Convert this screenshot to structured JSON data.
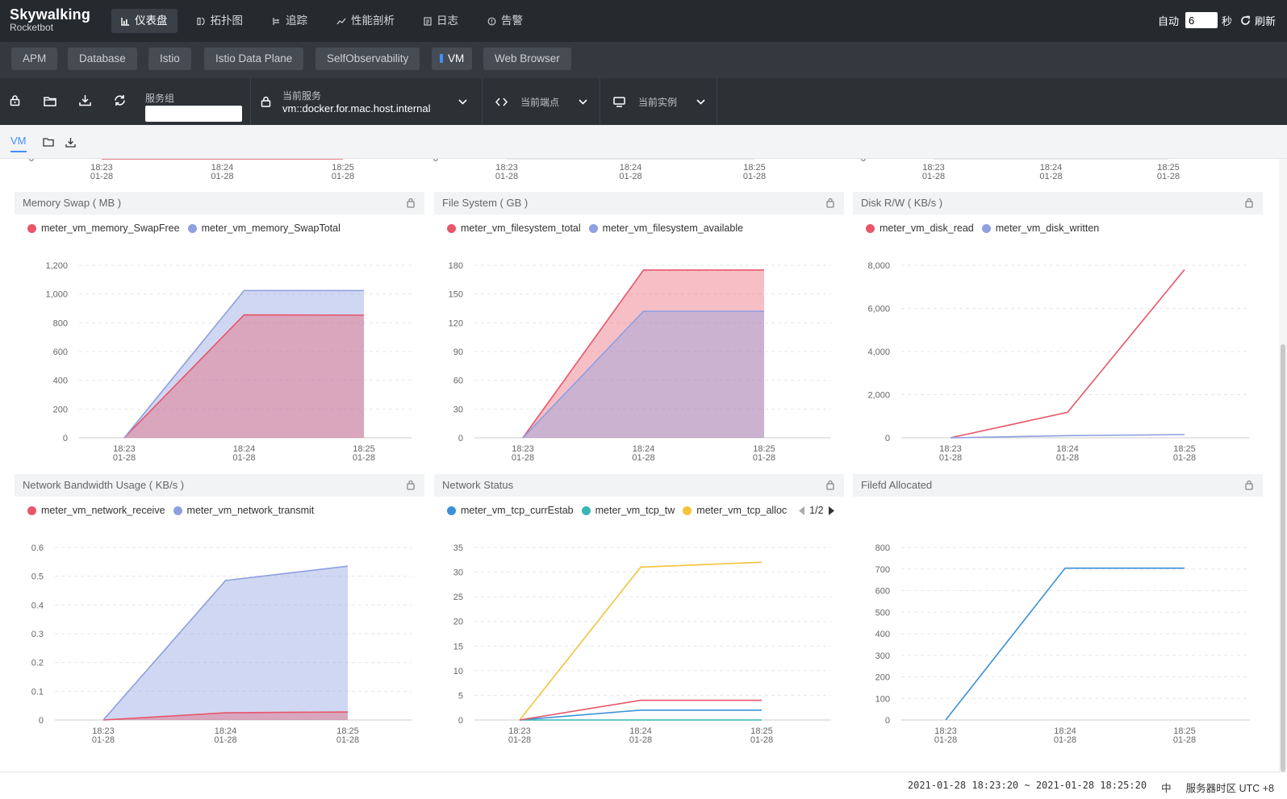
{
  "app": {
    "logo": "Skywalking",
    "logo_sub": "Rocketbot"
  },
  "nav": {
    "items": [
      {
        "label": "仪表盘",
        "icon": "dashboard-icon",
        "active": true
      },
      {
        "label": "拓扑图",
        "icon": "topology-icon"
      },
      {
        "label": "追踪",
        "icon": "trace-icon"
      },
      {
        "label": "性能剖析",
        "icon": "profile-icon"
      },
      {
        "label": "日志",
        "icon": "log-icon"
      },
      {
        "label": "告警",
        "icon": "alarm-icon"
      }
    ]
  },
  "refresh": {
    "auto_label": "自动",
    "interval": "6",
    "seconds_label": "秒",
    "refresh_label": "刷新"
  },
  "layer_tabs": [
    "APM",
    "Database",
    "Istio",
    "Istio Data Plane",
    "SelfObservability",
    "VM",
    "Web Browser"
  ],
  "active_layer": "VM",
  "toolbar": {
    "group_label": "服务组",
    "group_value": "",
    "service_title": "当前服务",
    "service_value": "vm::docker.for.mac.host.internal",
    "endpoint_title": "当前端点",
    "instance_title": "当前实例"
  },
  "subtab": {
    "label": "VM"
  },
  "footer": {
    "range": "2021-01-28 18:23:20 ~ 2021-01-28 18:25:20",
    "lang": "中",
    "tz_label": "服务器时区 UTC +8"
  },
  "colors": {
    "red": "#e8566a",
    "blue": "#8f9fe0",
    "sky": "#3a91d8",
    "teal": "#37b6b3",
    "yellow": "#f4c33a"
  },
  "top_axis": {
    "ticks": [
      [
        "18:23",
        "01-28"
      ],
      [
        "18:24",
        "01-28"
      ],
      [
        "18:25",
        "01-28"
      ]
    ],
    "zero": "0"
  },
  "chart_data": [
    {
      "title": "Memory Swap ( MB )",
      "type": "area",
      "stacked": false,
      "x": [
        "18:23\n01-28",
        "18:24\n01-28",
        "18:25\n01-28"
      ],
      "ylim": [
        0,
        1200
      ],
      "yticks": [
        0,
        200,
        400,
        600,
        800,
        1000,
        1200
      ],
      "ytick_labels": [
        "0",
        "200",
        "400",
        "600",
        "800",
        "1,000",
        "1,200"
      ],
      "series": [
        {
          "name": "meter_vm_memory_SwapFree",
          "color": "#e8566a",
          "values": [
            0,
            855,
            853
          ]
        },
        {
          "name": "meter_vm_memory_SwapTotal",
          "color": "#8f9fe0",
          "values": [
            0,
            1024,
            1024
          ]
        }
      ]
    },
    {
      "title": "File System ( GB )",
      "type": "area",
      "x": [
        "18:23\n01-28",
        "18:24\n01-28",
        "18:25\n01-28"
      ],
      "ylim": [
        0,
        180
      ],
      "yticks": [
        0,
        30,
        60,
        90,
        120,
        150,
        180
      ],
      "ytick_labels": [
        "0",
        "30",
        "60",
        "90",
        "120",
        "150",
        "180"
      ],
      "series": [
        {
          "name": "meter_vm_filesystem_total",
          "color": "#e8566a",
          "values": [
            0,
            175,
            175
          ]
        },
        {
          "name": "meter_vm_filesystem_available",
          "color": "#8f9fe0",
          "values": [
            0,
            132,
            132
          ]
        }
      ]
    },
    {
      "title": "Disk R/W ( KB/s )",
      "type": "line",
      "x": [
        "18:23\n01-28",
        "18:24\n01-28",
        "18:25\n01-28"
      ],
      "ylim": [
        0,
        8000
      ],
      "yticks": [
        0,
        2000,
        4000,
        6000,
        8000
      ],
      "ytick_labels": [
        "0",
        "2,000",
        "4,000",
        "6,000",
        "8,000"
      ],
      "series": [
        {
          "name": "meter_vm_disk_read",
          "color": "#e8566a",
          "values": [
            0,
            1180,
            7800
          ]
        },
        {
          "name": "meter_vm_disk_written",
          "color": "#8f9fe0",
          "values": [
            0,
            100,
            150
          ]
        }
      ]
    },
    {
      "title": "Network Bandwidth Usage ( KB/s )",
      "type": "area",
      "x": [
        "18:23\n01-28",
        "18:24\n01-28",
        "18:25\n01-28"
      ],
      "ylim": [
        0,
        0.6
      ],
      "yticks": [
        0,
        0.1,
        0.2,
        0.3,
        0.4,
        0.5,
        0.6
      ],
      "ytick_labels": [
        "0",
        "0.1",
        "0.2",
        "0.3",
        "0.4",
        "0.5",
        "0.6"
      ],
      "series": [
        {
          "name": "meter_vm_network_receive",
          "color": "#e8566a",
          "values": [
            0,
            0.025,
            0.028
          ]
        },
        {
          "name": "meter_vm_network_transmit",
          "color": "#8f9fe0",
          "values": [
            0,
            0.485,
            0.535
          ]
        }
      ]
    },
    {
      "title": "Network Status",
      "type": "line",
      "legend_page": "1/2",
      "x": [
        "18:23\n01-28",
        "18:24\n01-28",
        "18:25\n01-28"
      ],
      "ylim": [
        0,
        35
      ],
      "yticks": [
        0,
        5,
        10,
        15,
        20,
        25,
        30,
        35
      ],
      "ytick_labels": [
        "0",
        "5",
        "10",
        "15",
        "20",
        "25",
        "30",
        "35"
      ],
      "series": [
        {
          "name": "meter_vm_tcp_currEstab",
          "color": "#3a91d8",
          "values": [
            0,
            2,
            2
          ]
        },
        {
          "name": "meter_vm_tcp_tw",
          "color": "#37b6b3",
          "values": [
            0,
            0,
            0
          ]
        },
        {
          "name": "meter_vm_tcp_alloc",
          "color": "#f4c33a",
          "values": [
            0,
            31,
            32
          ]
        },
        {
          "color": "#e8566a",
          "values": [
            0,
            4,
            4
          ]
        }
      ]
    },
    {
      "title": "Filefd Allocated",
      "type": "line",
      "x": [
        "18:23\n01-28",
        "18:24\n01-28",
        "18:25\n01-28"
      ],
      "ylim": [
        0,
        800
      ],
      "yticks": [
        0,
        100,
        200,
        300,
        400,
        500,
        600,
        700,
        800
      ],
      "ytick_labels": [
        "0",
        "100",
        "200",
        "300",
        "400",
        "500",
        "600",
        "700",
        "800"
      ],
      "series": [
        {
          "color": "#3a91d8",
          "values": [
            0,
            704,
            704
          ]
        }
      ]
    }
  ]
}
